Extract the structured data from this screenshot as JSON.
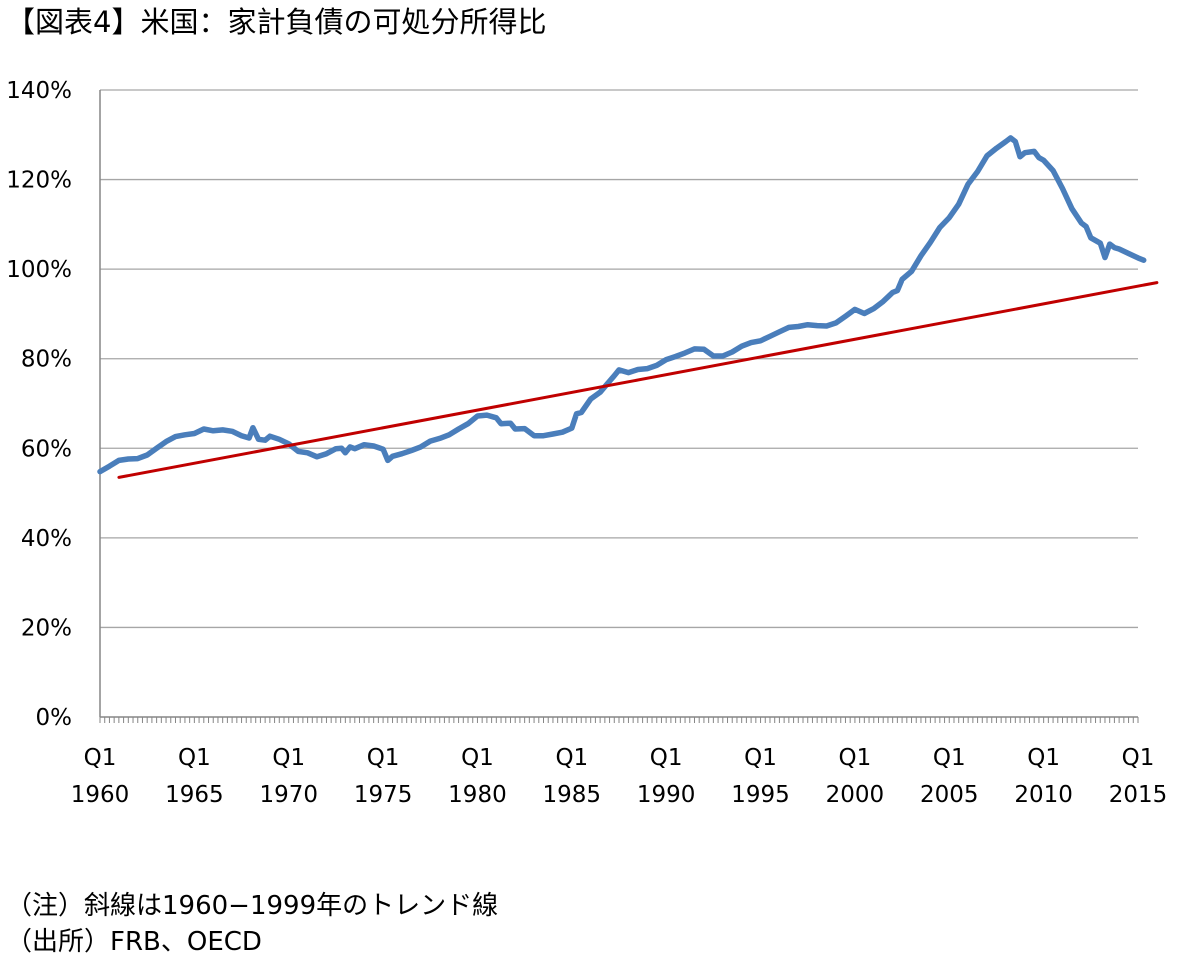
{
  "title": "【図表4】米国：家計負債の可処分所得比",
  "notes": {
    "note": "（注）斜線は1960−1999年のトレンド線",
    "source": "（出所）FRB、OECD"
  },
  "chart_data": {
    "type": "line",
    "title": "【図表4】米国：家計負債の可処分所得比",
    "xlabel": "",
    "ylabel": "",
    "ylim": [
      0,
      140
    ],
    "xlim": [
      1960.0,
      2015.0
    ],
    "grid": true,
    "y_ticks": [
      "0%",
      "20%",
      "40%",
      "60%",
      "80%",
      "100%",
      "120%",
      "140%"
    ],
    "x_ticks": [
      {
        "x": 1960,
        "q": "Q1",
        "year": "1960"
      },
      {
        "x": 1965,
        "q": "Q1",
        "year": "1965"
      },
      {
        "x": 1970,
        "q": "Q1",
        "year": "1970"
      },
      {
        "x": 1975,
        "q": "Q1",
        "year": "1975"
      },
      {
        "x": 1980,
        "q": "Q1",
        "year": "1980"
      },
      {
        "x": 1985,
        "q": "Q1",
        "year": "1985"
      },
      {
        "x": 1990,
        "q": "Q1",
        "year": "1990"
      },
      {
        "x": 1995,
        "q": "Q1",
        "year": "1995"
      },
      {
        "x": 2000,
        "q": "Q1",
        "year": "2000"
      },
      {
        "x": 2005,
        "q": "Q1",
        "year": "2005"
      },
      {
        "x": 2010,
        "q": "Q1",
        "year": "2010"
      },
      {
        "x": 2015,
        "q": "Q1",
        "year": "2015"
      }
    ],
    "series": [
      {
        "color": "#4a7ebb",
        "points": [
          [
            1960.0,
            54.8
          ],
          [
            1960.5,
            56.0
          ],
          [
            1961.0,
            57.3
          ],
          [
            1961.5,
            57.6
          ],
          [
            1962.0,
            57.7
          ],
          [
            1962.5,
            58.5
          ],
          [
            1963.0,
            60.0
          ],
          [
            1963.5,
            61.5
          ],
          [
            1964.0,
            62.6
          ],
          [
            1964.5,
            63.0
          ],
          [
            1965.0,
            63.3
          ],
          [
            1965.5,
            64.3
          ],
          [
            1966.0,
            63.9
          ],
          [
            1966.5,
            64.1
          ],
          [
            1967.0,
            63.8
          ],
          [
            1967.5,
            62.8
          ],
          [
            1967.9,
            62.3
          ],
          [
            1968.1,
            64.6
          ],
          [
            1968.4,
            62.0
          ],
          [
            1968.75,
            61.8
          ],
          [
            1969.0,
            62.7
          ],
          [
            1969.5,
            62.0
          ],
          [
            1970.0,
            61.0
          ],
          [
            1970.5,
            59.3
          ],
          [
            1971.0,
            59.0
          ],
          [
            1971.5,
            58.1
          ],
          [
            1972.0,
            58.8
          ],
          [
            1972.5,
            59.9
          ],
          [
            1972.8,
            60.0
          ],
          [
            1973.0,
            59.0
          ],
          [
            1973.25,
            60.3
          ],
          [
            1973.5,
            59.9
          ],
          [
            1974.0,
            60.8
          ],
          [
            1974.5,
            60.5
          ],
          [
            1975.0,
            59.8
          ],
          [
            1975.25,
            57.3
          ],
          [
            1975.5,
            58.2
          ],
          [
            1976.0,
            58.8
          ],
          [
            1976.5,
            59.5
          ],
          [
            1977.0,
            60.3
          ],
          [
            1977.5,
            61.6
          ],
          [
            1978.0,
            62.2
          ],
          [
            1978.5,
            63.0
          ],
          [
            1979.0,
            64.3
          ],
          [
            1979.5,
            65.5
          ],
          [
            1980.0,
            67.2
          ],
          [
            1980.5,
            67.4
          ],
          [
            1981.0,
            66.8
          ],
          [
            1981.25,
            65.5
          ],
          [
            1981.75,
            65.6
          ],
          [
            1982.0,
            64.3
          ],
          [
            1982.5,
            64.4
          ],
          [
            1983.0,
            62.8
          ],
          [
            1983.5,
            62.8
          ],
          [
            1984.0,
            63.2
          ],
          [
            1984.5,
            63.6
          ],
          [
            1985.0,
            64.5
          ],
          [
            1985.25,
            67.7
          ],
          [
            1985.5,
            68.0
          ],
          [
            1986.0,
            71.0
          ],
          [
            1986.5,
            72.5
          ],
          [
            1987.0,
            75.0
          ],
          [
            1987.25,
            76.2
          ],
          [
            1987.5,
            77.5
          ],
          [
            1988.0,
            76.9
          ],
          [
            1988.5,
            77.6
          ],
          [
            1989.0,
            77.8
          ],
          [
            1989.5,
            78.5
          ],
          [
            1990.0,
            79.8
          ],
          [
            1990.5,
            80.5
          ],
          [
            1991.0,
            81.3
          ],
          [
            1991.5,
            82.2
          ],
          [
            1992.0,
            82.1
          ],
          [
            1992.5,
            80.6
          ],
          [
            1993.0,
            80.6
          ],
          [
            1993.5,
            81.5
          ],
          [
            1994.0,
            82.8
          ],
          [
            1994.5,
            83.6
          ],
          [
            1995.0,
            84.0
          ],
          [
            1995.5,
            85.0
          ],
          [
            1996.0,
            86.0
          ],
          [
            1996.5,
            87.0
          ],
          [
            1997.0,
            87.2
          ],
          [
            1997.5,
            87.6
          ],
          [
            1998.0,
            87.4
          ],
          [
            1998.5,
            87.3
          ],
          [
            1999.0,
            88.0
          ],
          [
            1999.5,
            89.5
          ],
          [
            2000.0,
            91.0
          ],
          [
            2000.5,
            90.1
          ],
          [
            2001.0,
            91.2
          ],
          [
            2001.5,
            92.8
          ],
          [
            2002.0,
            94.8
          ],
          [
            2002.25,
            95.2
          ],
          [
            2002.5,
            97.7
          ],
          [
            2003.0,
            99.5
          ],
          [
            2003.5,
            103.0
          ],
          [
            2004.0,
            106.0
          ],
          [
            2004.5,
            109.3
          ],
          [
            2005.0,
            111.5
          ],
          [
            2005.5,
            114.5
          ],
          [
            2006.0,
            119.0
          ],
          [
            2006.5,
            121.8
          ],
          [
            2007.0,
            125.3
          ],
          [
            2007.5,
            127.0
          ],
          [
            2008.0,
            128.5
          ],
          [
            2008.25,
            129.3
          ],
          [
            2008.5,
            128.5
          ],
          [
            2008.75,
            125.1
          ],
          [
            2009.0,
            126.0
          ],
          [
            2009.5,
            126.3
          ],
          [
            2009.75,
            124.9
          ],
          [
            2010.0,
            124.3
          ],
          [
            2010.5,
            122.0
          ],
          [
            2011.0,
            118.0
          ],
          [
            2011.5,
            113.5
          ],
          [
            2012.0,
            110.3
          ],
          [
            2012.25,
            109.5
          ],
          [
            2012.5,
            107.0
          ],
          [
            2013.0,
            105.8
          ],
          [
            2013.25,
            102.6
          ],
          [
            2013.5,
            105.6
          ],
          [
            2013.75,
            104.8
          ],
          [
            2014.0,
            104.5
          ],
          [
            2014.5,
            103.5
          ],
          [
            2015.0,
            102.5
          ],
          [
            2015.3,
            102.0
          ]
        ]
      },
      {
        "color": "#c00000",
        "points": [
          [
            1961.0,
            53.5
          ],
          [
            2016.0,
            97.0
          ]
        ]
      }
    ]
  }
}
